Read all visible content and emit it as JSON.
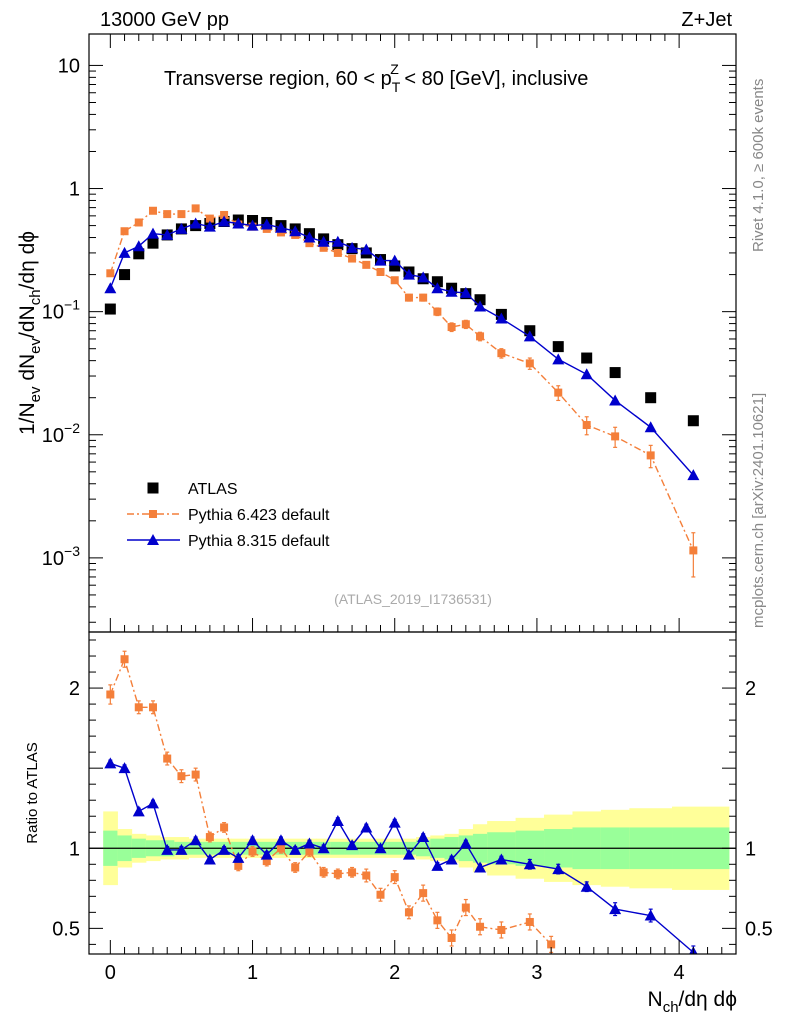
{
  "header": {
    "energy_label": "13000 GeV pp",
    "process_label": "Z+Jet"
  },
  "side_labels": {
    "rivet": "Rivet 4.1.0, ≥ 600k events",
    "source": "mcplots.cern.ch [arXiv:2401.10621]"
  },
  "chart_data": [
    {
      "type": "scatter",
      "panel": "main",
      "title_main": "Transverse region, 60 < p",
      "title_sup": "Z",
      "title_sub": "T",
      "title_end": " < 80 [GeV], inclusive",
      "ylabel": "1/N_ev dN_ev/dN_ch/dη dϕ",
      "yscale": "log",
      "ylim": [
        0.00025,
        18
      ],
      "xlim": [
        -0.15,
        4.4
      ],
      "y_tick_labels": [
        {
          "value": 10,
          "base": "10",
          "exp": ""
        },
        {
          "value": 1,
          "base": "1",
          "exp": ""
        },
        {
          "value": 0.1,
          "base": "10",
          "exp": "−1"
        },
        {
          "value": 0.01,
          "base": "10",
          "exp": "−2"
        },
        {
          "value": 0.001,
          "base": "10",
          "exp": "−3"
        }
      ],
      "watermark": "(ATLAS_2019_I1736531)",
      "legend": {
        "position": "bottom-left",
        "entries": [
          "ATLAS",
          "Pythia 6.423 default",
          "Pythia 8.315 default"
        ]
      },
      "series": [
        {
          "name": "ATLAS",
          "color": "#000000",
          "marker": "square",
          "x": [
            0.0,
            0.1,
            0.2,
            0.3,
            0.4,
            0.5,
            0.6,
            0.7,
            0.8,
            0.9,
            1.0,
            1.1,
            1.2,
            1.3,
            1.4,
            1.5,
            1.6,
            1.7,
            1.8,
            1.9,
            2.0,
            2.1,
            2.2,
            2.3,
            2.4,
            2.5,
            2.6,
            2.75,
            2.95,
            3.15,
            3.35,
            3.55,
            3.8,
            4.1
          ],
          "y": [
            0.105,
            0.2,
            0.295,
            0.36,
            0.42,
            0.47,
            0.5,
            0.52,
            0.54,
            0.555,
            0.55,
            0.53,
            0.5,
            0.47,
            0.43,
            0.39,
            0.35,
            0.325,
            0.3,
            0.265,
            0.235,
            0.21,
            0.185,
            0.175,
            0.155,
            0.14,
            0.125,
            0.095,
            0.07,
            0.052,
            0.042,
            0.032,
            0.02,
            0.013
          ]
        },
        {
          "name": "Pythia 6.423 default",
          "color": "#f47f3a",
          "marker": "square-small",
          "line": "dashdot",
          "x": [
            0.0,
            0.1,
            0.2,
            0.3,
            0.4,
            0.5,
            0.6,
            0.7,
            0.8,
            0.9,
            1.0,
            1.1,
            1.2,
            1.3,
            1.4,
            1.5,
            1.6,
            1.7,
            1.8,
            1.9,
            2.0,
            2.1,
            2.2,
            2.3,
            2.4,
            2.5,
            2.6,
            2.75,
            2.95,
            3.15,
            3.35,
            3.55,
            3.8,
            4.1
          ],
          "y": [
            0.205,
            0.45,
            0.53,
            0.66,
            0.62,
            0.62,
            0.69,
            0.57,
            0.61,
            0.51,
            0.49,
            0.47,
            0.44,
            0.42,
            0.36,
            0.33,
            0.3,
            0.27,
            0.24,
            0.21,
            0.18,
            0.13,
            0.13,
            0.1,
            0.075,
            0.079,
            0.063,
            0.046,
            0.038,
            0.022,
            0.012,
            0.0097,
            0.0068,
            0.00115
          ],
          "err": [
            0,
            0,
            0,
            0,
            0,
            0,
            0,
            0,
            0,
            0,
            0,
            0,
            0,
            0,
            0,
            0,
            0,
            0,
            0,
            0,
            0.01,
            0.008,
            0.008,
            0.007,
            0.006,
            0.006,
            0.005,
            0.004,
            0.004,
            0.003,
            0.002,
            0.0018,
            0.0014,
            0.00045
          ]
        },
        {
          "name": "Pythia 8.315 default",
          "color": "#0000cc",
          "marker": "triangle",
          "line": "solid",
          "x": [
            0.0,
            0.1,
            0.2,
            0.3,
            0.4,
            0.5,
            0.6,
            0.7,
            0.8,
            0.9,
            1.0,
            1.1,
            1.2,
            1.3,
            1.4,
            1.5,
            1.6,
            1.7,
            1.8,
            1.9,
            2.0,
            2.1,
            2.2,
            2.3,
            2.4,
            2.5,
            2.6,
            2.75,
            2.95,
            3.15,
            3.35,
            3.55,
            3.8,
            4.1
          ],
          "y": [
            0.155,
            0.3,
            0.34,
            0.43,
            0.42,
            0.47,
            0.52,
            0.49,
            0.54,
            0.52,
            0.5,
            0.51,
            0.48,
            0.45,
            0.4,
            0.37,
            0.37,
            0.33,
            0.32,
            0.26,
            0.26,
            0.2,
            0.19,
            0.155,
            0.145,
            0.142,
            0.11,
            0.088,
            0.063,
            0.041,
            0.031,
            0.019,
            0.0115,
            0.0047
          ]
        }
      ]
    },
    {
      "type": "line",
      "panel": "ratio",
      "ylabel": "Ratio to ATLAS",
      "ylim": [
        0.34,
        2.35
      ],
      "xlim": [
        -0.15,
        4.4
      ],
      "xlabel": "N_ch/dη dϕ",
      "x_ticks": [
        "0",
        "1",
        "2",
        "3",
        "4"
      ],
      "y_ticks": [
        "0.5",
        "1",
        "2"
      ],
      "reference_line": 1,
      "bands": {
        "x": [
          -0.05,
          0.05,
          0.15,
          0.25,
          0.35,
          0.45,
          0.55,
          0.65,
          0.75,
          0.85,
          0.95,
          1.05,
          1.15,
          1.25,
          1.35,
          1.45,
          1.55,
          1.65,
          1.75,
          1.85,
          1.95,
          2.05,
          2.15,
          2.25,
          2.35,
          2.45,
          2.55,
          2.65,
          2.85,
          3.05,
          3.25,
          3.45,
          3.65,
          3.95,
          4.35
        ],
        "inner_hw": [
          0.11,
          0.08,
          0.06,
          0.05,
          0.05,
          0.04,
          0.04,
          0.04,
          0.04,
          0.04,
          0.04,
          0.04,
          0.04,
          0.04,
          0.04,
          0.04,
          0.04,
          0.04,
          0.04,
          0.04,
          0.04,
          0.04,
          0.05,
          0.06,
          0.07,
          0.08,
          0.09,
          0.1,
          0.11,
          0.12,
          0.13,
          0.13,
          0.13,
          0.13
        ],
        "outer_hw": [
          0.23,
          0.12,
          0.09,
          0.08,
          0.07,
          0.07,
          0.06,
          0.06,
          0.06,
          0.06,
          0.06,
          0.06,
          0.06,
          0.06,
          0.06,
          0.06,
          0.06,
          0.06,
          0.06,
          0.06,
          0.06,
          0.06,
          0.07,
          0.08,
          0.09,
          0.12,
          0.15,
          0.17,
          0.19,
          0.21,
          0.23,
          0.24,
          0.25,
          0.26
        ],
        "inner_color": "#99ff99",
        "outer_color": "#ffff99"
      },
      "series": [
        {
          "name": "Pythia 6.423 default",
          "color": "#f47f3a",
          "x": [
            0.0,
            0.1,
            0.2,
            0.3,
            0.4,
            0.5,
            0.6,
            0.7,
            0.8,
            0.9,
            1.0,
            1.1,
            1.2,
            1.3,
            1.4,
            1.5,
            1.6,
            1.7,
            1.8,
            1.9,
            2.0,
            2.1,
            2.2,
            2.3,
            2.4,
            2.5,
            2.6,
            2.75,
            2.95,
            3.1
          ],
          "y": [
            1.96,
            2.18,
            1.88,
            1.88,
            1.56,
            1.45,
            1.46,
            1.07,
            1.13,
            0.89,
            0.98,
            0.92,
            1.0,
            0.88,
            0.98,
            0.85,
            0.84,
            0.85,
            0.83,
            0.71,
            0.82,
            0.6,
            0.72,
            0.55,
            0.44,
            0.63,
            0.51,
            0.49,
            0.54,
            0.4
          ],
          "err": [
            0.06,
            0.05,
            0.04,
            0.04,
            0.04,
            0.04,
            0.04,
            0.03,
            0.03,
            0.03,
            0.03,
            0.03,
            0.03,
            0.03,
            0.03,
            0.03,
            0.03,
            0.03,
            0.04,
            0.04,
            0.04,
            0.04,
            0.05,
            0.05,
            0.05,
            0.05,
            0.05,
            0.05,
            0.05,
            0.05
          ]
        },
        {
          "name": "Pythia 8.315 default",
          "color": "#0000cc",
          "x": [
            0.0,
            0.1,
            0.2,
            0.3,
            0.4,
            0.5,
            0.6,
            0.7,
            0.8,
            0.9,
            1.0,
            1.1,
            1.2,
            1.3,
            1.4,
            1.5,
            1.6,
            1.7,
            1.8,
            1.9,
            2.0,
            2.1,
            2.2,
            2.3,
            2.4,
            2.5,
            2.6,
            2.75,
            2.95,
            3.15,
            3.35,
            3.55,
            3.8,
            4.1
          ],
          "y": [
            1.53,
            1.5,
            1.23,
            1.28,
            0.99,
            0.99,
            1.05,
            0.93,
            0.99,
            0.94,
            1.05,
            0.96,
            1.05,
            0.99,
            1.03,
            1.0,
            1.17,
            1.02,
            1.13,
            1.0,
            1.16,
            0.96,
            1.07,
            0.89,
            0.93,
            1.03,
            0.88,
            0.93,
            0.9,
            0.87,
            0.76,
            0.62,
            0.58,
            0.35
          ],
          "err": [
            0.02,
            0.02,
            0.02,
            0.02,
            0.02,
            0.02,
            0.02,
            0.02,
            0.02,
            0.02,
            0.02,
            0.02,
            0.02,
            0.02,
            0.02,
            0.02,
            0.02,
            0.02,
            0.02,
            0.02,
            0.02,
            0.02,
            0.02,
            0.02,
            0.02,
            0.02,
            0.02,
            0.02,
            0.03,
            0.03,
            0.03,
            0.04,
            0.04,
            0.04
          ]
        }
      ]
    }
  ]
}
